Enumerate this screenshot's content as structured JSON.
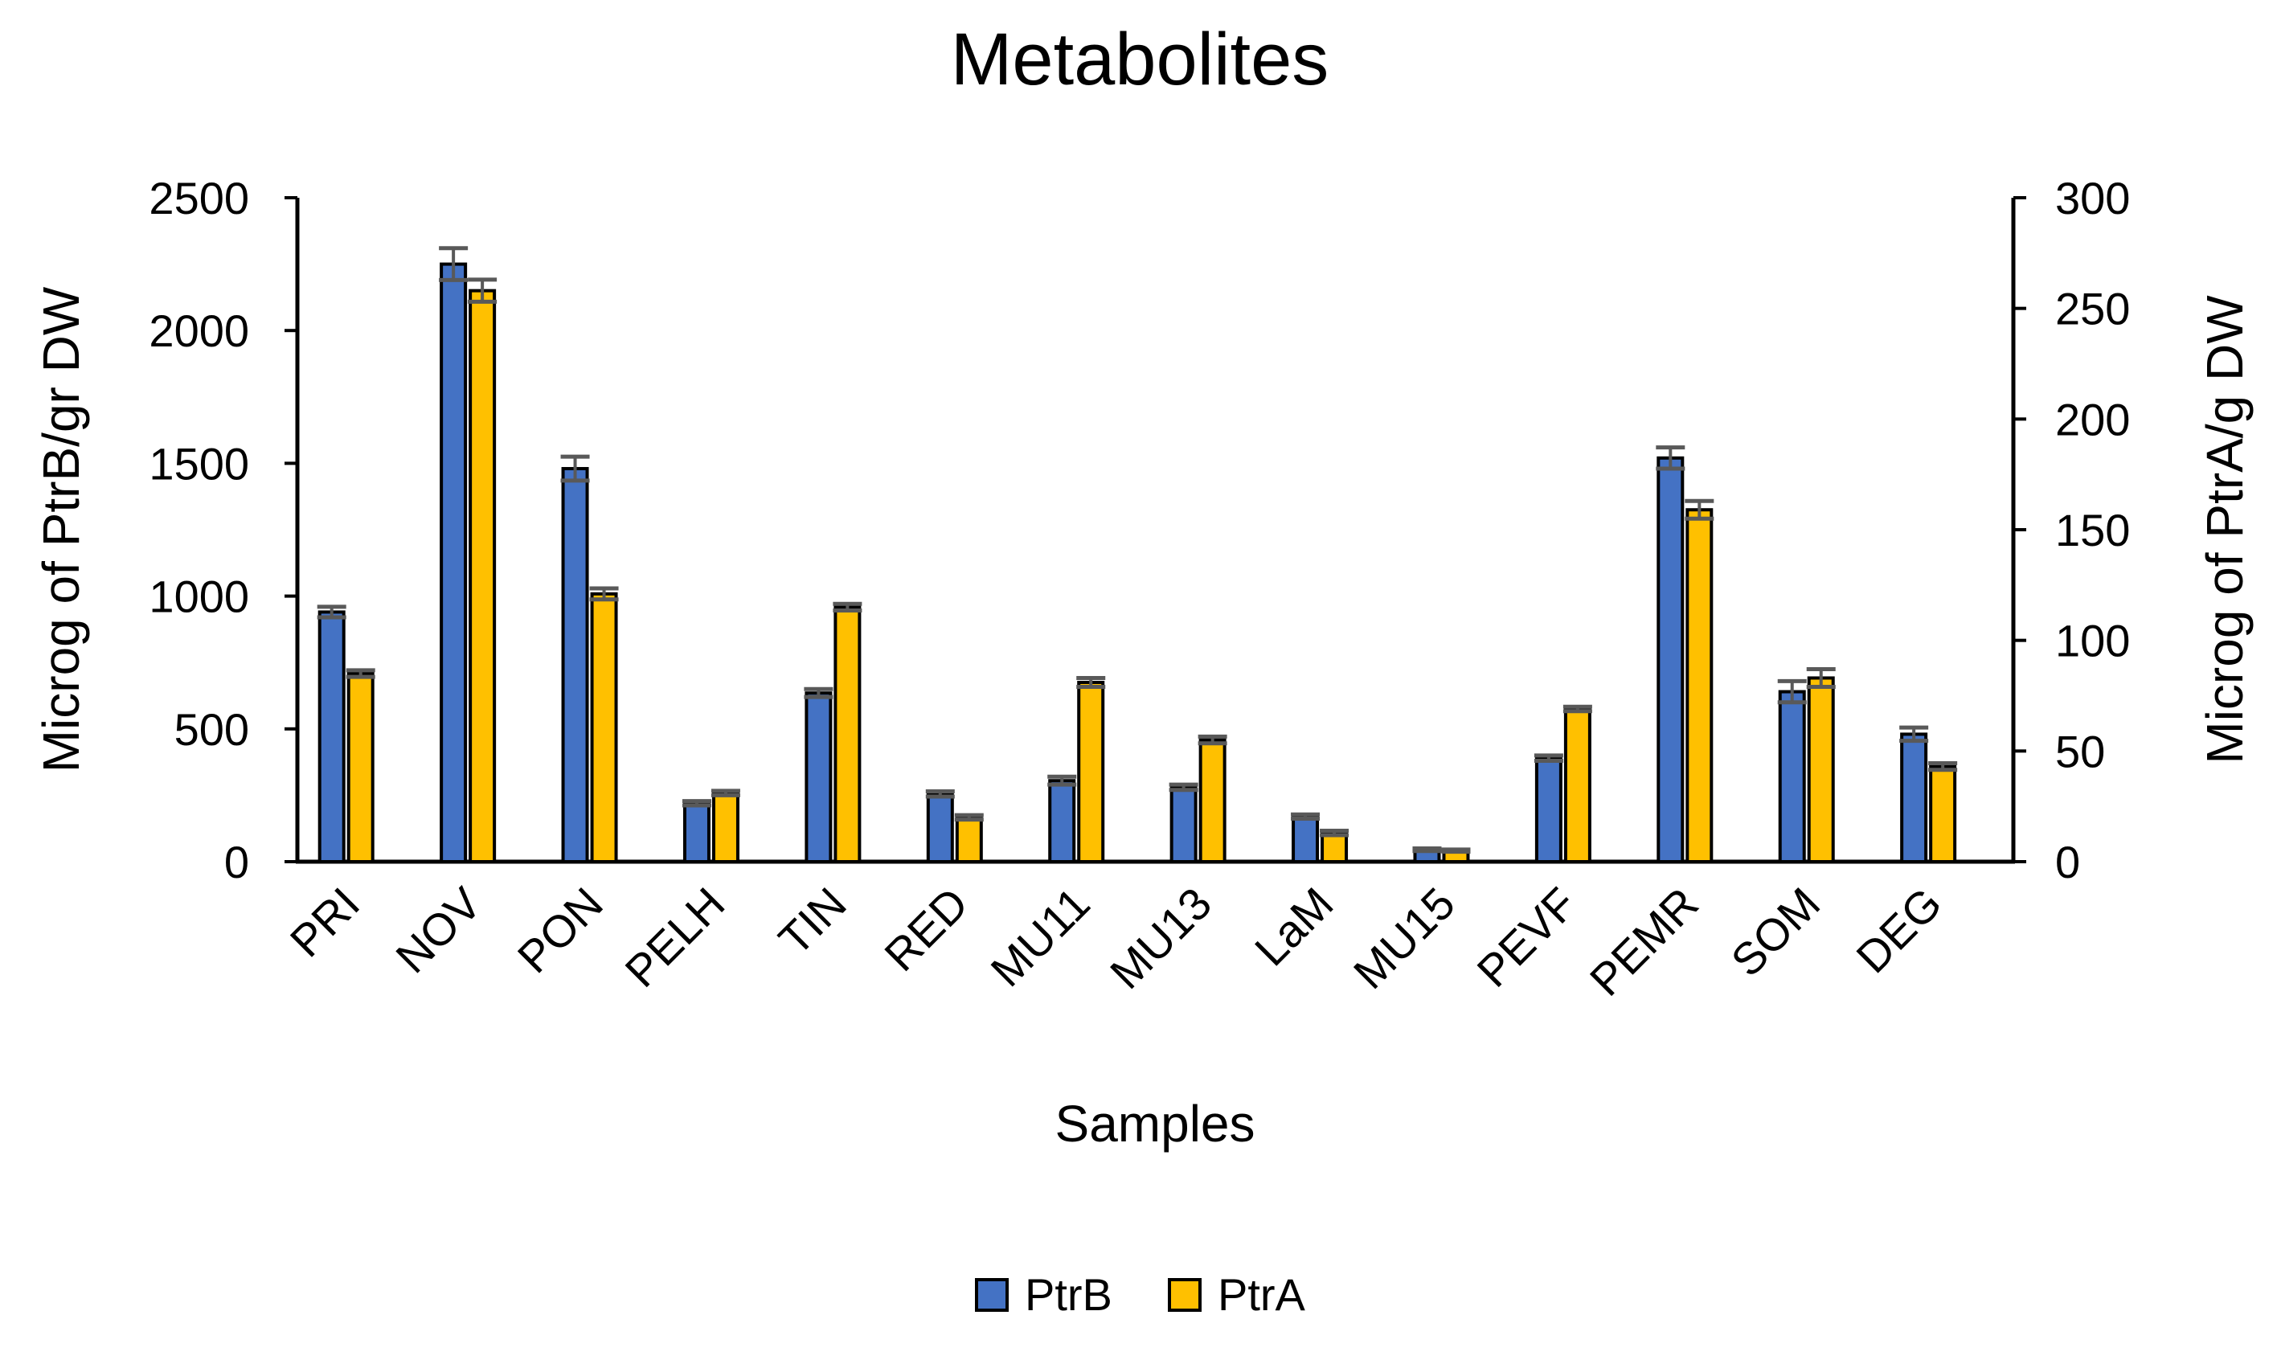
{
  "chart_data": {
    "type": "bar",
    "title": "Metabolites",
    "xlabel": "Samples",
    "ylabel": "Microg of PtrB/gr DW",
    "y2label": "Microg of PtrA/g DW",
    "categories": [
      "PRI",
      "NOV",
      "PON",
      "PELH",
      "TIN",
      "RED",
      "MU11",
      "MU13",
      "LaM",
      "MU15",
      "PEVF",
      "PEMR",
      "SOM",
      "DEG"
    ],
    "ylim": [
      0,
      2500
    ],
    "yticks": [
      0,
      500,
      1000,
      1500,
      2000,
      2500
    ],
    "y2lim": [
      0,
      300
    ],
    "y2ticks": [
      0,
      50,
      100,
      150,
      200,
      250,
      300
    ],
    "grid": false,
    "legend": "bottom-center",
    "series": [
      {
        "name": "PtrB",
        "axis": "left",
        "color": "#4472C4",
        "values": [
          940,
          2250,
          1480,
          220,
          635,
          255,
          305,
          280,
          170,
          45,
          390,
          1520,
          640,
          480
        ],
        "errors": [
          20,
          60,
          45,
          8,
          15,
          10,
          15,
          10,
          8,
          5,
          10,
          40,
          40,
          25
        ]
      },
      {
        "name": "PtrA",
        "axis": "right",
        "color": "#FFC000",
        "values": [
          85,
          258,
          121,
          31,
          115,
          20,
          81,
          55,
          13,
          5,
          69,
          159,
          83,
          43
        ],
        "errors": [
          1.5,
          5,
          2.5,
          1,
          1.5,
          1,
          2,
          1.5,
          1,
          0.5,
          1,
          4,
          4,
          1.5
        ]
      }
    ]
  }
}
